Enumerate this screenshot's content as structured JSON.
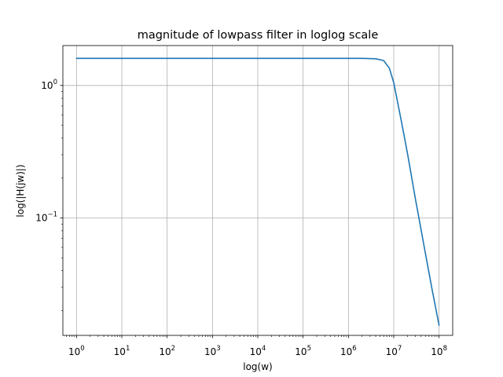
{
  "chart_data": {
    "type": "line",
    "title": "magnitude of lowpass filter in loglog scale",
    "xlabel": "log(w)",
    "ylabel": "log(|H(jw)|)",
    "x_scale": "log",
    "y_scale": "log",
    "xlim": [
      0.5,
      200000000
    ],
    "ylim": [
      0.013,
      2.0
    ],
    "grid": true,
    "x_major_ticks": [
      {
        "value": 1,
        "base": "10",
        "exp": "0"
      },
      {
        "value": 10,
        "base": "10",
        "exp": "1"
      },
      {
        "value": 100,
        "base": "10",
        "exp": "2"
      },
      {
        "value": 1000,
        "base": "10",
        "exp": "3"
      },
      {
        "value": 10000,
        "base": "10",
        "exp": "4"
      },
      {
        "value": 100000,
        "base": "10",
        "exp": "5"
      },
      {
        "value": 1000000,
        "base": "10",
        "exp": "6"
      },
      {
        "value": 10000000,
        "base": "10",
        "exp": "7"
      },
      {
        "value": 100000000,
        "base": "10",
        "exp": "8"
      }
    ],
    "y_major_ticks": [
      {
        "value": 1,
        "base": "10",
        "exp": "0"
      },
      {
        "value": 0.1,
        "base": "10",
        "exp": "−1"
      }
    ],
    "series": [
      {
        "name": "|H(jw)|",
        "color": "#1f77b4",
        "x": [
          1,
          10,
          100,
          1000,
          10000,
          100000,
          1000000,
          2000000,
          4000000,
          6000000,
          8000000,
          10000000,
          15000000,
          20000000,
          30000000,
          50000000,
          70000000,
          100000000
        ],
        "y": [
          1.6,
          1.6,
          1.6,
          1.6,
          1.6,
          1.6,
          1.6,
          1.6,
          1.59,
          1.54,
          1.35,
          1.05,
          0.52,
          0.31,
          0.14,
          0.054,
          0.029,
          0.0155
        ]
      }
    ]
  }
}
